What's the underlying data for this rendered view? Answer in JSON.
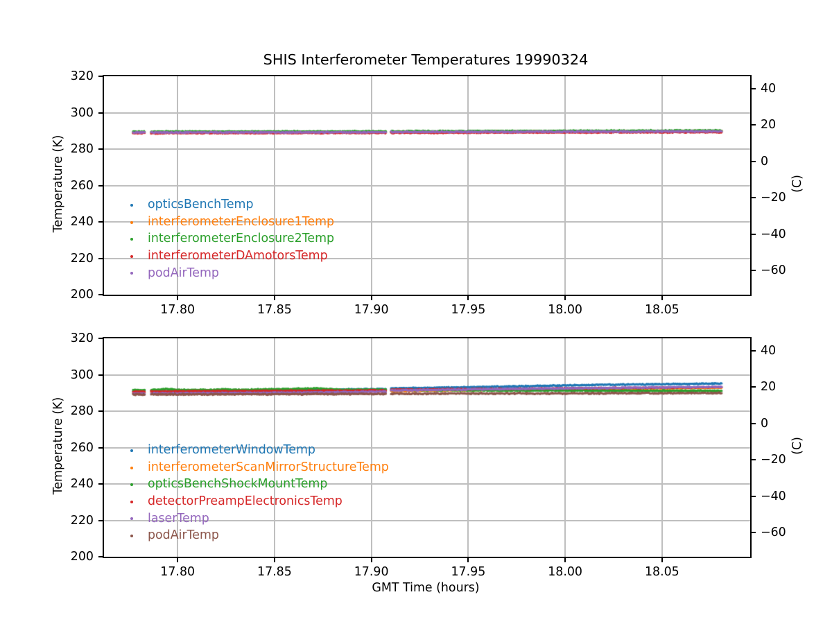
{
  "figure": {
    "title": "SHIS Interferometer Temperatures 19990324",
    "xlabel": "GMT Time (hours)",
    "ylabel_left": "Temperature (K)",
    "ylabel_right": "(C)",
    "background": "#ffffff",
    "grid_color": "#bfbfbf",
    "spine_color": "#000000"
  },
  "chart_data": [
    {
      "type": "scatter",
      "subplot": "top",
      "title": "SHIS Interferometer Temperatures 19990324",
      "xlabel": "",
      "ylabel": "Temperature (K)",
      "ylabel_right": "(C)",
      "xlim": [
        17.762,
        18.0955
      ],
      "ylim": [
        200,
        320
      ],
      "grid": true,
      "x_tick_values": [
        17.8,
        17.85,
        17.9,
        17.95,
        18.0,
        18.05
      ],
      "x_tick_labels": [
        "17.80",
        "17.85",
        "17.90",
        "17.95",
        "18.00",
        "18.05"
      ],
      "y_tick_values": [
        320,
        300,
        280,
        260,
        240,
        220,
        200
      ],
      "y_tick_labels": [
        "320",
        "300",
        "280",
        "260",
        "240",
        "220",
        "200"
      ],
      "c_tick_values": [
        40,
        20,
        0,
        -20,
        -40,
        -60
      ],
      "c_tick_labels": [
        "40",
        "20",
        "0",
        "−20",
        "−40",
        "−60"
      ],
      "kelvin_offset": 273.15,
      "legend_position": "lower left",
      "data_segments": [
        [
          17.777,
          17.7832
        ],
        [
          17.7863,
          17.9076
        ],
        [
          17.9101,
          18.081
        ]
      ],
      "series": [
        {
          "name": "opticsBenchTemp",
          "color": "#1f77b4",
          "noise_k": 0.22,
          "trend": [
            [
              17.777,
              289.2
            ],
            [
              17.9076,
              289.35
            ],
            [
              17.9101,
              289.5
            ],
            [
              18.081,
              289.8
            ]
          ]
        },
        {
          "name": "interferometerEnclosure1Temp",
          "color": "#ff7f0e",
          "noise_k": 0.28,
          "trend": [
            [
              17.777,
              289.3
            ],
            [
              17.9076,
              289.45
            ],
            [
              17.9101,
              289.55
            ],
            [
              18.081,
              289.95
            ]
          ]
        },
        {
          "name": "interferometerEnclosure2Temp",
          "color": "#2ca02c",
          "noise_k": 0.3,
          "trend": [
            [
              17.777,
              289.6
            ],
            [
              17.9076,
              289.75
            ],
            [
              17.9101,
              289.8
            ],
            [
              18.081,
              290.25
            ]
          ]
        },
        {
          "name": "interferometerDAmotorsTemp",
          "color": "#d62728",
          "noise_k": 0.3,
          "trend": [
            [
              17.777,
              288.75
            ],
            [
              17.9076,
              288.9
            ],
            [
              17.9101,
              288.95
            ],
            [
              18.081,
              289.3
            ]
          ]
        },
        {
          "name": "podAirTemp",
          "color": "#9467bd",
          "noise_k": 0.32,
          "trend": [
            [
              17.777,
              289.15
            ],
            [
              17.9076,
              289.3
            ],
            [
              17.9101,
              289.4
            ],
            [
              18.081,
              289.75
            ]
          ]
        }
      ]
    },
    {
      "type": "scatter",
      "subplot": "bottom",
      "title": "",
      "xlabel": "GMT Time (hours)",
      "ylabel": "Temperature (K)",
      "ylabel_right": "(C)",
      "xlim": [
        17.762,
        18.0955
      ],
      "ylim": [
        200,
        320
      ],
      "grid": true,
      "x_tick_values": [
        17.8,
        17.85,
        17.9,
        17.95,
        18.0,
        18.05
      ],
      "x_tick_labels": [
        "17.80",
        "17.85",
        "17.90",
        "17.95",
        "18.00",
        "18.05"
      ],
      "y_tick_values": [
        320,
        300,
        280,
        260,
        240,
        220,
        200
      ],
      "y_tick_labels": [
        "320",
        "300",
        "280",
        "260",
        "240",
        "220",
        "200"
      ],
      "c_tick_values": [
        40,
        20,
        0,
        -20,
        -40,
        -60
      ],
      "c_tick_labels": [
        "40",
        "20",
        "0",
        "−20",
        "−40",
        "−60"
      ],
      "kelvin_offset": 273.15,
      "legend_position": "lower left",
      "data_segments": [
        [
          17.777,
          17.7832
        ],
        [
          17.7863,
          17.9076
        ],
        [
          17.9101,
          18.081
        ]
      ],
      "series": [
        {
          "name": "interferometerWindowTemp",
          "color": "#1f77b4",
          "noise_k": 0.28,
          "trend": [
            [
              17.777,
              291.0
            ],
            [
              17.85,
              291.6
            ],
            [
              17.9076,
              292.2
            ],
            [
              17.9101,
              292.5
            ],
            [
              17.96,
              293.4
            ],
            [
              18.02,
              294.5
            ],
            [
              18.081,
              295.2
            ]
          ]
        },
        {
          "name": "interferometerScanMirrorStructureTemp",
          "color": "#ff7f0e",
          "noise_k": 0.25,
          "trend": [
            [
              17.777,
              290.2
            ],
            [
              17.9076,
              290.8
            ],
            [
              17.9101,
              291.0
            ],
            [
              17.96,
              291.6
            ],
            [
              18.081,
              292.9
            ]
          ]
        },
        {
          "name": "opticsBenchShockMountTemp",
          "color": "#2ca02c",
          "noise_k": 0.28,
          "trend": [
            [
              17.777,
              291.6
            ],
            [
              17.79,
              291.7
            ],
            [
              17.794,
              292.3
            ],
            [
              17.8,
              291.7
            ],
            [
              17.82,
              291.7
            ],
            [
              17.824,
              292.1
            ],
            [
              17.83,
              291.7
            ],
            [
              17.872,
              292.5
            ],
            [
              17.884,
              291.8
            ],
            [
              17.9076,
              291.9
            ],
            [
              17.9101,
              291.7
            ],
            [
              17.96,
              291.4
            ],
            [
              18.081,
              291.2
            ]
          ]
        },
        {
          "name": "detectorPreampElectronicsTemp",
          "color": "#d62728",
          "noise_k": 0.3,
          "trend": [
            [
              17.777,
              290.8
            ],
            [
              17.9076,
              291.4
            ],
            [
              17.9101,
              291.8
            ],
            [
              17.96,
              292.2
            ],
            [
              18.081,
              293.2
            ]
          ]
        },
        {
          "name": "laserTemp",
          "color": "#9467bd",
          "noise_k": 0.3,
          "trend": [
            [
              17.777,
              289.7
            ],
            [
              17.86,
              290.2
            ],
            [
              17.9076,
              290.7
            ],
            [
              17.9101,
              291.4
            ],
            [
              17.96,
              292.1
            ],
            [
              18.081,
              293.4
            ]
          ]
        },
        {
          "name": "podAirTemp",
          "color": "#8c564b",
          "noise_k": 0.38,
          "trend": [
            [
              17.777,
              289.2
            ],
            [
              17.9076,
              289.5
            ],
            [
              17.9101,
              289.6
            ],
            [
              18.081,
              290.0
            ]
          ]
        }
      ]
    }
  ]
}
